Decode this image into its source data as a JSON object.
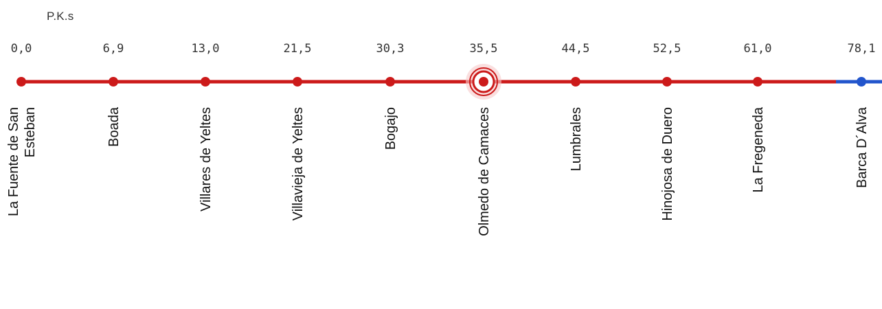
{
  "header": {
    "pk_label": "P.K.s"
  },
  "colors": {
    "line_main": "#cc1a1a",
    "line_continuation": "#2255cc",
    "station_dot_main": "#cc1a1a",
    "station_dot_continuation": "#2255cc",
    "current_station_ring": "#cc1a1a"
  },
  "current_station_index": 5,
  "stations": [
    {
      "pk": "0,0",
      "name_lines": [
        "La Fuente de San",
        "Esteban"
      ]
    },
    {
      "pk": "6,9",
      "name_lines": [
        "Boada"
      ]
    },
    {
      "pk": "13,0",
      "name_lines": [
        "Villares de Yeltes"
      ]
    },
    {
      "pk": "21,5",
      "name_lines": [
        "Villavieja de Yeltes"
      ]
    },
    {
      "pk": "30,3",
      "name_lines": [
        "Bogajo"
      ]
    },
    {
      "pk": "35,5",
      "name_lines": [
        "Olmedo de Camaces"
      ]
    },
    {
      "pk": "44,5",
      "name_lines": [
        "Lumbrales"
      ]
    },
    {
      "pk": "52,5",
      "name_lines": [
        "Hinojosa de Duero"
      ]
    },
    {
      "pk": "61,0",
      "name_lines": [
        "La Fregeneda"
      ]
    },
    {
      "pk": "78,1",
      "name_lines": [
        "Barca D´Alva"
      ]
    }
  ]
}
